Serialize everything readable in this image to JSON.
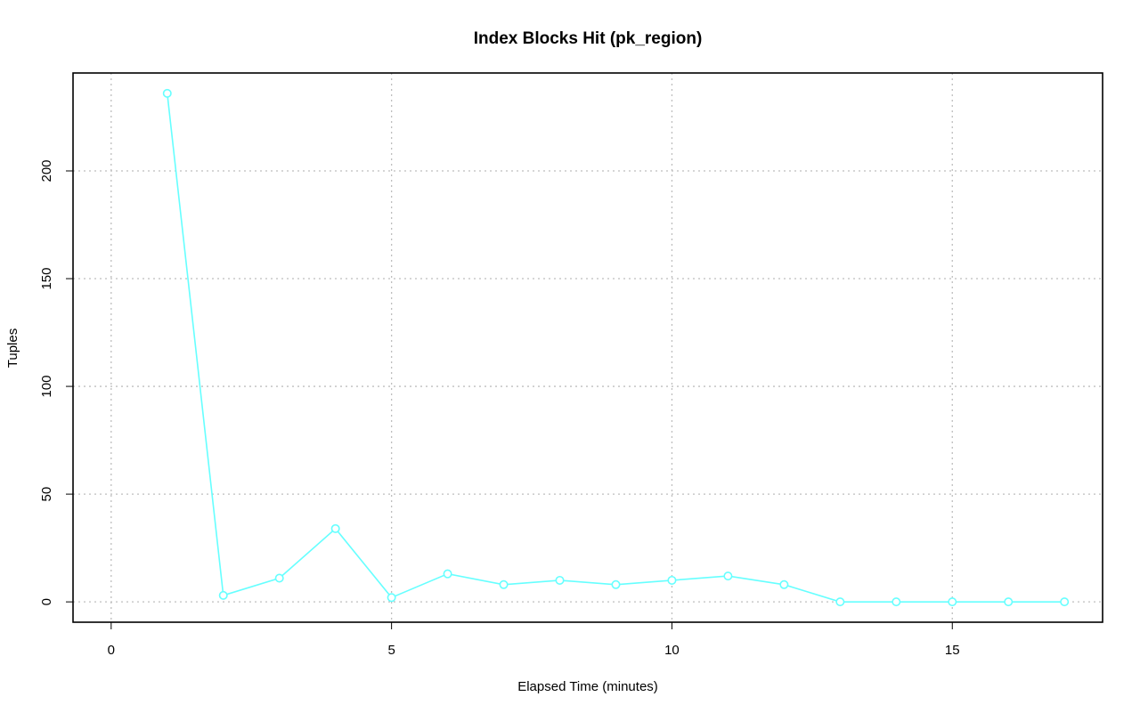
{
  "chart_data": {
    "type": "line",
    "title": "Index Blocks Hit (pk_region)",
    "xlabel": "Elapsed Time (minutes)",
    "ylabel": "Tuples",
    "xlim": [
      -0.68,
      17.68
    ],
    "ylim": [
      -9.44,
      245.44
    ],
    "x_ticks": [
      0,
      5,
      10,
      15
    ],
    "y_ticks": [
      0,
      50,
      100,
      150,
      200
    ],
    "x_tick_labels": [
      "0",
      "5",
      "10",
      "15"
    ],
    "y_tick_labels": [
      "0",
      "50",
      "100",
      "150",
      "200"
    ],
    "grid": true,
    "series": [
      {
        "color": "#66ffff",
        "marker": "circle-open",
        "x": [
          1,
          2,
          3,
          4,
          5,
          6,
          7,
          8,
          9,
          10,
          11,
          12,
          13,
          14,
          15,
          16,
          17
        ],
        "y": [
          236,
          3,
          11,
          34,
          2,
          13,
          8,
          10,
          8,
          10,
          12,
          8,
          0,
          0,
          0,
          0,
          0
        ]
      }
    ]
  }
}
